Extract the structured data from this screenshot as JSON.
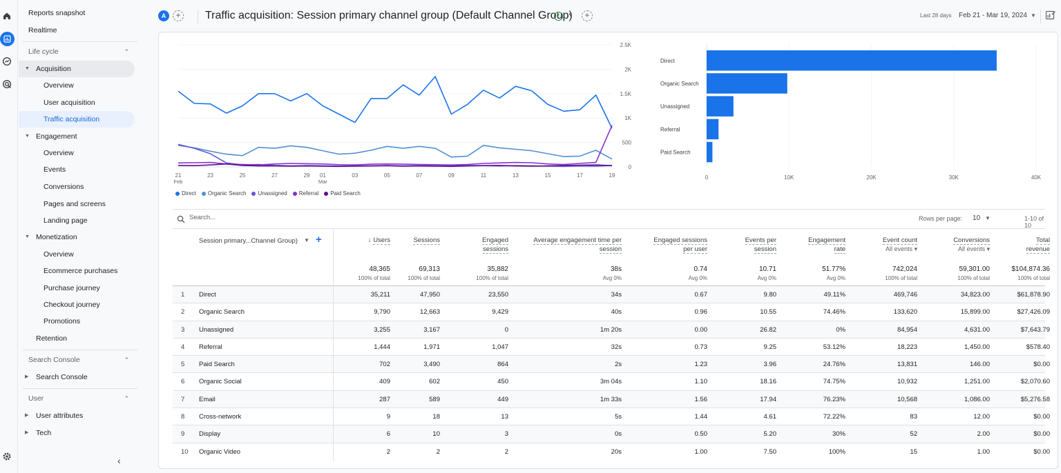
{
  "nav": {
    "reports_snapshot": "Reports snapshot",
    "realtime": "Realtime",
    "lifecycle": "Life cycle",
    "acquisition": "Acquisition",
    "acq_overview": "Overview",
    "user_acquisition": "User acquisition",
    "traffic_acquisition": "Traffic acquisition",
    "engagement": "Engagement",
    "eng_overview": "Overview",
    "events": "Events",
    "conversions": "Conversions",
    "pages_screens": "Pages and screens",
    "landing_page": "Landing page",
    "monetization": "Monetization",
    "mon_overview": "Overview",
    "ecommerce_purchases": "Ecommerce purchases",
    "purchase_journey": "Purchase journey",
    "checkout_journey": "Checkout journey",
    "promotions": "Promotions",
    "retention": "Retention",
    "search_console_section": "Search Console",
    "search_console": "Search Console",
    "user_section": "User",
    "user_attributes": "User attributes",
    "tech": "Tech"
  },
  "header": {
    "avatar": "A",
    "title": "Traffic acquisition: Session primary channel group (Default Channel Group)",
    "range_label": "Last 28 days",
    "range_value": "Feb 21 - Mar 19, 2024"
  },
  "colors": {
    "direct": "#1a73e8",
    "organic_search": "#4f8fd1",
    "unassigned": "#5f58d9",
    "referral": "#8430ce",
    "paid_search": "#5b0f8f",
    "bar": "#1a73e8"
  },
  "chart_data": [
    {
      "type": "line",
      "x": [
        "21 Feb",
        "22",
        "23",
        "24",
        "25",
        "26",
        "27",
        "28",
        "29",
        "01 Mar",
        "02",
        "03",
        "04",
        "05",
        "06",
        "07",
        "08",
        "09",
        "10",
        "11",
        "12",
        "13",
        "14",
        "15",
        "16",
        "17",
        "18",
        "19"
      ],
      "x_ticks": [
        {
          "i": 0,
          "label": "21",
          "sub": "Feb"
        },
        {
          "i": 2,
          "label": "23"
        },
        {
          "i": 4,
          "label": "25"
        },
        {
          "i": 6,
          "label": "27"
        },
        {
          "i": 8,
          "label": "29"
        },
        {
          "i": 9,
          "label": "01",
          "sub": "Mar"
        },
        {
          "i": 11,
          "label": "03"
        },
        {
          "i": 13,
          "label": "05"
        },
        {
          "i": 15,
          "label": "07"
        },
        {
          "i": 17,
          "label": "09"
        },
        {
          "i": 19,
          "label": "11"
        },
        {
          "i": 21,
          "label": "13"
        },
        {
          "i": 23,
          "label": "15"
        },
        {
          "i": 25,
          "label": "17"
        },
        {
          "i": 27,
          "label": "19"
        }
      ],
      "y_ticks": [
        {
          "v": 0,
          "label": "0"
        },
        {
          "v": 500,
          "label": "500"
        },
        {
          "v": 1000,
          "label": "1K"
        },
        {
          "v": 1500,
          "label": "1.5K"
        },
        {
          "v": 2000,
          "label": "2K"
        },
        {
          "v": 2500,
          "label": "2.5K"
        }
      ],
      "ylim": [
        0,
        2500
      ],
      "series": [
        {
          "name": "Direct",
          "color_key": "direct",
          "values": [
            1550,
            1300,
            1290,
            1100,
            1250,
            1500,
            1500,
            1350,
            1500,
            1250,
            1080,
            910,
            1400,
            1400,
            1680,
            1470,
            1850,
            1080,
            1280,
            1570,
            1410,
            1650,
            1560,
            1280,
            1140,
            1170,
            1470,
            790
          ]
        },
        {
          "name": "Organic Search",
          "color_key": "organic_search",
          "values": [
            440,
            390,
            320,
            260,
            230,
            400,
            380,
            430,
            400,
            330,
            260,
            280,
            340,
            420,
            380,
            420,
            380,
            200,
            220,
            440,
            390,
            360,
            330,
            270,
            210,
            220,
            340,
            160
          ]
        },
        {
          "name": "Unassigned",
          "color_key": "unassigned",
          "values": [
            460,
            380,
            270,
            80,
            40,
            50,
            30,
            20,
            25,
            20,
            15,
            20,
            20,
            25,
            20,
            25,
            20,
            20,
            30,
            25,
            20,
            25,
            20,
            15,
            10,
            20,
            15,
            30
          ]
        },
        {
          "name": "Referral",
          "color_key": "referral",
          "values": [
            80,
            85,
            90,
            60,
            50,
            40,
            60,
            70,
            65,
            60,
            45,
            40,
            55,
            60,
            55,
            50,
            45,
            40,
            50,
            70,
            80,
            90,
            85,
            60,
            50,
            70,
            90,
            850
          ]
        },
        {
          "name": "Paid Search",
          "color_key": "paid_search",
          "values": [
            30,
            25,
            40,
            60,
            30,
            20,
            20,
            15,
            20,
            15,
            10,
            15,
            20,
            25,
            15,
            20,
            15,
            10,
            20,
            25,
            30,
            20,
            15,
            20,
            30,
            35,
            40,
            25
          ]
        }
      ]
    },
    {
      "type": "bar",
      "orientation": "horizontal",
      "categories": [
        "Direct",
        "Organic Search",
        "Unassigned",
        "Referral",
        "Paid Search"
      ],
      "values": [
        35211,
        9790,
        3255,
        1444,
        702
      ],
      "xlim": [
        0,
        40000
      ],
      "x_ticks": [
        {
          "v": 0,
          "label": "0"
        },
        {
          "v": 10000,
          "label": "10K"
        },
        {
          "v": 20000,
          "label": "20K"
        },
        {
          "v": 30000,
          "label": "30K"
        },
        {
          "v": 40000,
          "label": "40K"
        }
      ]
    }
  ],
  "toolbar": {
    "search_placeholder": "Search...",
    "rows_per_page_label": "Rows per page:",
    "rows_per_page": "10",
    "page_range": "1-10 of 10"
  },
  "table": {
    "dimension_header": "Session primary...Channel Group)",
    "columns": [
      {
        "l1": "Users",
        "l2": "",
        "sort": true
      },
      {
        "l1": "Sessions",
        "l2": ""
      },
      {
        "l1": "Engaged",
        "l2": "sessions"
      },
      {
        "l1": "Average engagement time per",
        "l2": "session"
      },
      {
        "l1": "Engaged sessions",
        "l2": "per user"
      },
      {
        "l1": "Events per",
        "l2": "session"
      },
      {
        "l1": "Engagement",
        "l2": "rate"
      },
      {
        "l1": "Event count",
        "l2": "",
        "sub": "All events"
      },
      {
        "l1": "Conversions",
        "l2": "",
        "sub": "All events"
      },
      {
        "l1": "Total",
        "l2": "revenue"
      }
    ],
    "totals": [
      {
        "v": "48,365",
        "p": "100% of total"
      },
      {
        "v": "69,313",
        "p": "100% of total"
      },
      {
        "v": "35,882",
        "p": "100% of total"
      },
      {
        "v": "38s",
        "p": "Avg 0%"
      },
      {
        "v": "0.74",
        "p": "Avg 0%"
      },
      {
        "v": "10.71",
        "p": "Avg 0%"
      },
      {
        "v": "51.77%",
        "p": "Avg 0%"
      },
      {
        "v": "742,024",
        "p": "100% of total"
      },
      {
        "v": "59,301.00",
        "p": "100% of total"
      },
      {
        "v": "$104,874.36",
        "p": "100% of total"
      }
    ],
    "rows": [
      {
        "n": "1",
        "name": "Direct",
        "cells": [
          "35,211",
          "47,950",
          "23,550",
          "34s",
          "0.67",
          "9.80",
          "49.11%",
          "469,746",
          "34,823.00",
          "$61,878.90"
        ]
      },
      {
        "n": "2",
        "name": "Organic Search",
        "cells": [
          "9,790",
          "12,663",
          "9,429",
          "40s",
          "0.96",
          "10.55",
          "74.46%",
          "133,620",
          "15,899.00",
          "$27,426.09"
        ]
      },
      {
        "n": "3",
        "name": "Unassigned",
        "cells": [
          "3,255",
          "3,167",
          "0",
          "1m 20s",
          "0.00",
          "26.82",
          "0%",
          "84,954",
          "4,631.00",
          "$7,643.79"
        ]
      },
      {
        "n": "4",
        "name": "Referral",
        "cells": [
          "1,444",
          "1,971",
          "1,047",
          "32s",
          "0.73",
          "9.25",
          "53.12%",
          "18,223",
          "1,450.00",
          "$578.40"
        ]
      },
      {
        "n": "5",
        "name": "Paid Search",
        "cells": [
          "702",
          "3,490",
          "864",
          "2s",
          "1.23",
          "3.96",
          "24.76%",
          "13,831",
          "146.00",
          "$0.00"
        ]
      },
      {
        "n": "6",
        "name": "Organic Social",
        "cells": [
          "409",
          "602",
          "450",
          "3m 04s",
          "1.10",
          "18.16",
          "74.75%",
          "10,932",
          "1,251.00",
          "$2,070.60"
        ]
      },
      {
        "n": "7",
        "name": "Email",
        "cells": [
          "287",
          "589",
          "449",
          "1m 33s",
          "1.56",
          "17.94",
          "76.23%",
          "10,568",
          "1,086.00",
          "$5,276.58"
        ]
      },
      {
        "n": "8",
        "name": "Cross-network",
        "cells": [
          "9",
          "18",
          "13",
          "5s",
          "1.44",
          "4.61",
          "72.22%",
          "83",
          "12.00",
          "$0.00"
        ]
      },
      {
        "n": "9",
        "name": "Display",
        "cells": [
          "6",
          "10",
          "3",
          "0s",
          "0.50",
          "5.20",
          "30%",
          "52",
          "2.00",
          "$0.00"
        ]
      },
      {
        "n": "10",
        "name": "Organic Video",
        "cells": [
          "2",
          "2",
          "2",
          "20s",
          "1.00",
          "7.50",
          "100%",
          "15",
          "1.00",
          "$0.00"
        ]
      }
    ]
  }
}
